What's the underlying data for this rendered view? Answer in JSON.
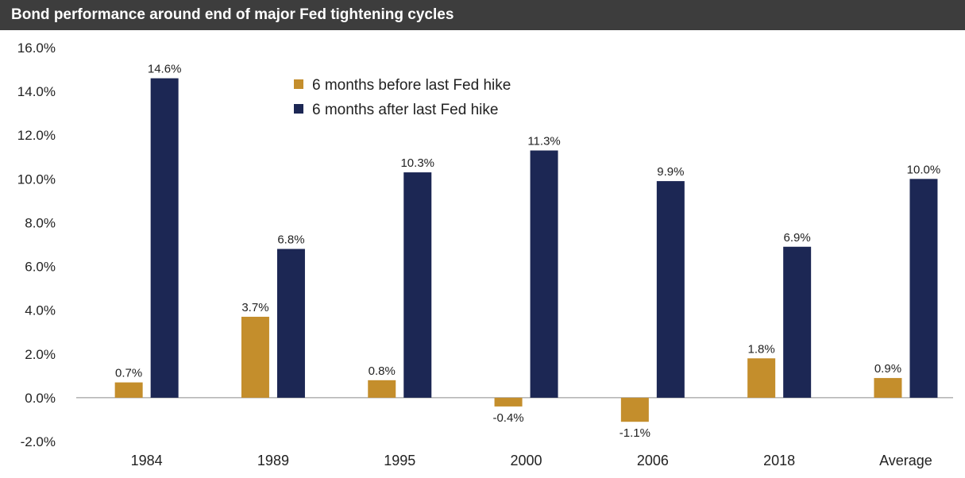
{
  "chart_data": {
    "type": "bar",
    "title": "Bond performance around end of major Fed tightening cycles",
    "categories": [
      "1984",
      "1989",
      "1995",
      "2000",
      "2006",
      "2018",
      "Average"
    ],
    "series": [
      {
        "name": "6 months before last Fed hike",
        "color": "#c48e2c",
        "values": [
          0.7,
          3.7,
          0.8,
          -0.4,
          -1.1,
          1.8,
          0.9
        ],
        "labels": [
          "0.7%",
          "3.7%",
          "0.8%",
          "-0.4%",
          "-1.1%",
          "1.8%",
          "0.9%"
        ]
      },
      {
        "name": "6 months after last Fed hike",
        "color": "#1c2754",
        "values": [
          14.6,
          6.8,
          10.3,
          11.3,
          9.9,
          6.9,
          10.0
        ],
        "labels": [
          "14.6%",
          "6.8%",
          "10.3%",
          "11.3%",
          "9.9%",
          "6.9%",
          "10.0%"
        ]
      }
    ],
    "yticks": [
      16,
      14,
      12,
      10,
      8,
      6,
      4,
      2,
      0,
      -2
    ],
    "ytick_labels": [
      "16.0%",
      "14.0%",
      "12.0%",
      "10.0%",
      "8.0%",
      "6.0%",
      "4.0%",
      "2.0%",
      "0.0%",
      "-2.0%"
    ],
    "ylim": [
      -2,
      16
    ],
    "xlabel": "",
    "ylabel": "",
    "grid": false,
    "legend_position": "top-center"
  }
}
